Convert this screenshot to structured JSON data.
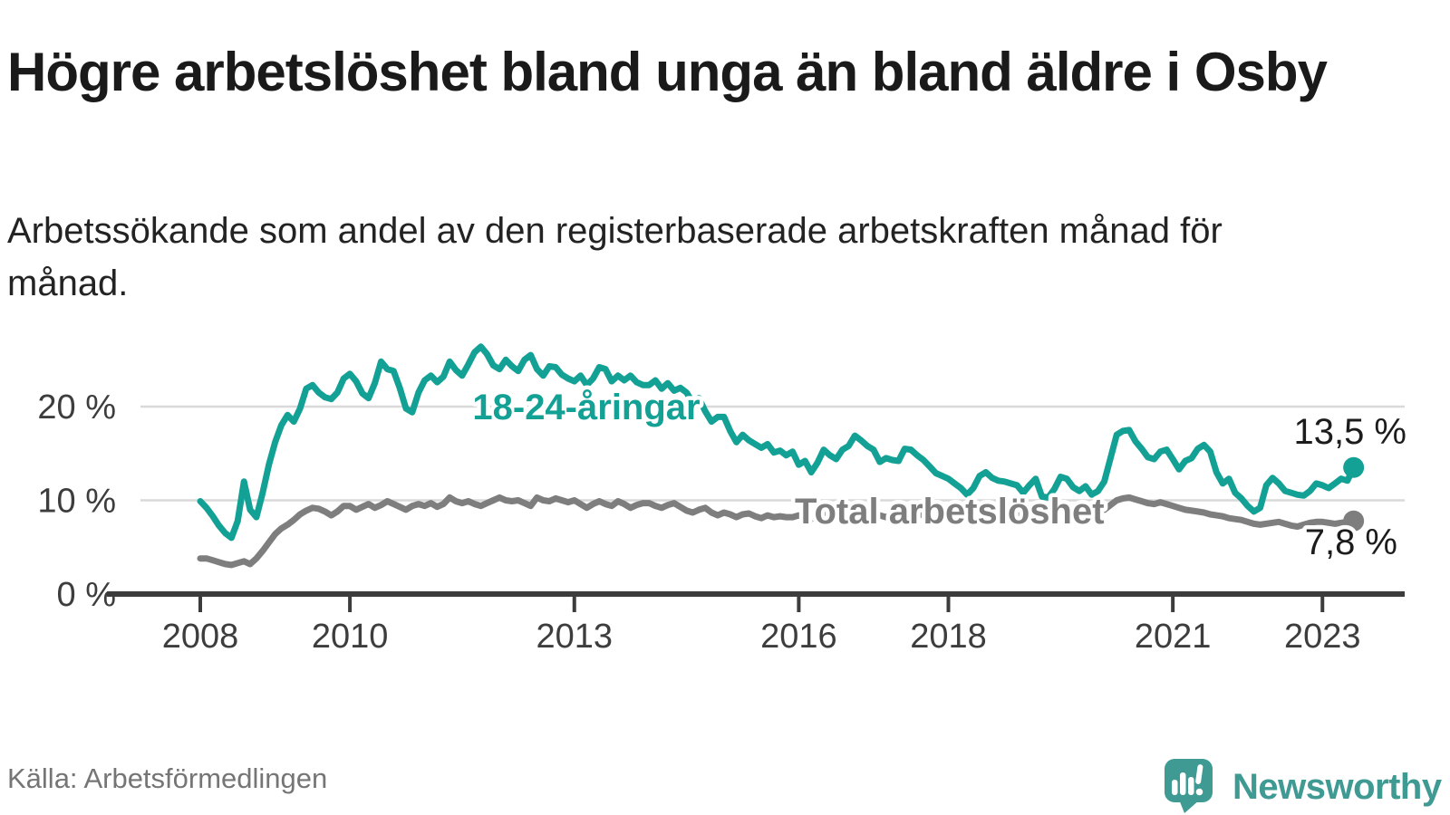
{
  "header": {
    "title": "Högre arbetslöshet bland unga än bland äldre i Osby",
    "subtitle": "Arbetssökande som andel av den registerbaserade arbetskraften månad för månad."
  },
  "footer": {
    "source": "Källa: Arbetsförmedlingen",
    "brand": "Newsworthy"
  },
  "colors": {
    "youth_line": "#14a195",
    "total_line": "#7e7e7e",
    "axis": "#3c3c3c",
    "grid": "#d9d9d9",
    "tick_text": "#3d3d3d",
    "logo_teal": "#3e9a93"
  },
  "chart_data": {
    "type": "line",
    "title": "Högre arbetslöshet bland unga än bland äldre i Osby",
    "subtitle": "Arbetssökande som andel av den registerbaserade arbetskraften månad för månad.",
    "unit": "%",
    "x_start_year": 2008,
    "x_start_month": 1,
    "x_step_months": 1,
    "x_end_year": 2023,
    "x_end_month": 6,
    "ylim": [
      0,
      27.5
    ],
    "grid": true,
    "x_ticks": [
      2008,
      2010,
      2013,
      2016,
      2018,
      2021,
      2023
    ],
    "y_ticks": [
      {
        "value": 0,
        "label": "0 %"
      },
      {
        "value": 10,
        "label": "10 %"
      },
      {
        "value": 20,
        "label": "20 %"
      }
    ],
    "series": [
      {
        "name": "Total arbetslöshet",
        "color": "#7e7e7e",
        "end_label": "7,8 %",
        "end_value": 7.8,
        "values": [
          3.8,
          3.8,
          3.6,
          3.4,
          3.2,
          3.1,
          3.3,
          3.5,
          3.2,
          3.8,
          4.6,
          5.5,
          6.4,
          7.0,
          7.4,
          7.9,
          8.5,
          8.9,
          9.2,
          9.1,
          8.8,
          8.4,
          8.8,
          9.4,
          9.4,
          9.0,
          9.3,
          9.6,
          9.2,
          9.5,
          9.9,
          9.6,
          9.3,
          9.0,
          9.4,
          9.6,
          9.4,
          9.7,
          9.3,
          9.6,
          10.3,
          9.9,
          9.7,
          9.9,
          9.6,
          9.4,
          9.7,
          10.0,
          10.3,
          10.0,
          9.9,
          10.0,
          9.7,
          9.4,
          10.3,
          10.0,
          9.9,
          10.2,
          10.0,
          9.8,
          10.0,
          9.6,
          9.2,
          9.6,
          9.9,
          9.6,
          9.4,
          9.9,
          9.6,
          9.2,
          9.5,
          9.7,
          9.7,
          9.4,
          9.2,
          9.5,
          9.7,
          9.3,
          8.9,
          8.7,
          9.0,
          9.2,
          8.7,
          8.4,
          8.7,
          8.5,
          8.2,
          8.5,
          8.6,
          8.3,
          8.1,
          8.4,
          8.2,
          8.3,
          8.2,
          8.2,
          8.4,
          8.2,
          8.0,
          8.3,
          8.5,
          8.3,
          8.1,
          8.4,
          8.6,
          8.4,
          8.2,
          8.5,
          8.6,
          8.4,
          8.2,
          8.5,
          8.3,
          8.6,
          8.8,
          8.6,
          8.4,
          8.2,
          8.3,
          8.5,
          8.5,
          8.3,
          8.1,
          8.0,
          8.2,
          8.4,
          8.6,
          8.4,
          8.2,
          8.1,
          8.3,
          8.4,
          8.4,
          8.6,
          8.4,
          8.2,
          8.3,
          8.5,
          8.8,
          8.6,
          8.5,
          8.4,
          8.6,
          8.8,
          8.9,
          9.0,
          9.5,
          10.0,
          10.2,
          10.3,
          10.1,
          9.9,
          9.7,
          9.6,
          9.8,
          9.6,
          9.4,
          9.2,
          9.0,
          8.9,
          8.8,
          8.7,
          8.5,
          8.4,
          8.3,
          8.1,
          8.0,
          7.9,
          7.7,
          7.5,
          7.4,
          7.5,
          7.6,
          7.7,
          7.5,
          7.3,
          7.2,
          7.4,
          7.6,
          7.7,
          7.7,
          7.6,
          7.5,
          7.6,
          7.7,
          7.8
        ]
      },
      {
        "name": "18-24-åringar",
        "color": "#14a195",
        "end_label": "13,5 %",
        "end_value": 13.5,
        "values": [
          9.9,
          9.2,
          8.3,
          7.3,
          6.5,
          6.0,
          7.8,
          12.0,
          9.0,
          8.2,
          10.8,
          13.8,
          16.2,
          18.0,
          19.1,
          18.4,
          19.8,
          21.9,
          22.3,
          21.5,
          21.0,
          20.8,
          21.5,
          23.0,
          23.5,
          22.7,
          21.4,
          20.9,
          22.5,
          24.8,
          24.0,
          23.8,
          22.0,
          19.8,
          19.4,
          21.5,
          22.8,
          23.3,
          22.6,
          23.2,
          24.8,
          23.9,
          23.3,
          24.5,
          25.8,
          26.4,
          25.6,
          24.4,
          24.0,
          25.0,
          24.3,
          23.8,
          25.0,
          25.5,
          24.0,
          23.3,
          24.3,
          24.2,
          23.4,
          23.0,
          22.7,
          23.3,
          22.3,
          23.0,
          24.2,
          24.0,
          22.7,
          23.3,
          22.8,
          23.3,
          22.6,
          22.3,
          22.3,
          22.8,
          21.9,
          22.5,
          21.7,
          22.0,
          21.5,
          20.4,
          20.9,
          19.5,
          18.4,
          18.9,
          18.9,
          17.4,
          16.2,
          17.0,
          16.4,
          16.0,
          15.6,
          16.0,
          15.1,
          15.3,
          14.8,
          15.2,
          13.8,
          14.2,
          13.0,
          14.0,
          15.4,
          14.8,
          14.4,
          15.4,
          15.8,
          16.9,
          16.4,
          15.8,
          15.4,
          14.1,
          14.5,
          14.3,
          14.2,
          15.5,
          15.4,
          14.8,
          14.3,
          13.6,
          12.9,
          12.6,
          12.3,
          11.8,
          11.3,
          10.6,
          11.3,
          12.6,
          13.0,
          12.4,
          12.1,
          12.0,
          11.8,
          11.6,
          10.8,
          11.6,
          12.3,
          10.4,
          10.3,
          11.2,
          12.5,
          12.3,
          11.4,
          11.0,
          11.5,
          10.6,
          11.0,
          12.0,
          14.5,
          17.0,
          17.4,
          17.5,
          16.3,
          15.5,
          14.6,
          14.4,
          15.2,
          15.4,
          14.4,
          13.3,
          14.2,
          14.5,
          15.5,
          15.9,
          15.2,
          13.0,
          11.8,
          12.3,
          10.8,
          10.2,
          9.4,
          8.8,
          9.2,
          11.6,
          12.4,
          11.8,
          11.0,
          10.8,
          10.6,
          10.5,
          11.0,
          11.8,
          11.6,
          11.3,
          11.8,
          12.3,
          12.1,
          13.5
        ]
      }
    ],
    "legend_position": "inline-labels"
  }
}
